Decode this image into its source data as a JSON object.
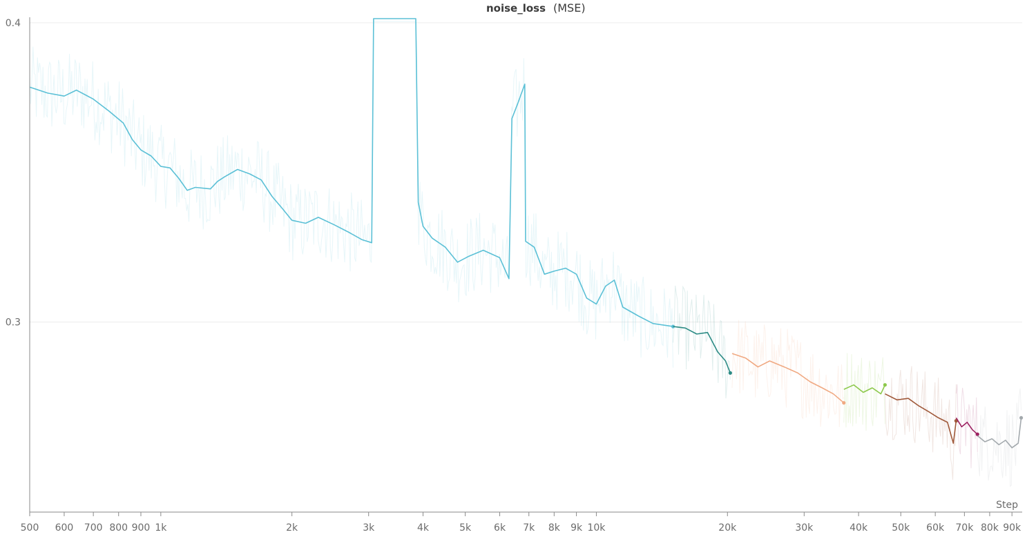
{
  "chart_data": {
    "type": "line",
    "title": "noise_loss",
    "subtitle": "(MSE)",
    "xlabel": "Step",
    "ylabel": "",
    "x_scale": "log",
    "xlim": [
      500,
      95000
    ],
    "ylim": [
      0.2365,
      0.4
    ],
    "x_ticks": [
      {
        "v": 500,
        "label": "500"
      },
      {
        "v": 600,
        "label": "600"
      },
      {
        "v": 700,
        "label": "700"
      },
      {
        "v": 800,
        "label": "800"
      },
      {
        "v": 900,
        "label": "900"
      },
      {
        "v": 1000,
        "label": "1k"
      },
      {
        "v": 2000,
        "label": "2k"
      },
      {
        "v": 3000,
        "label": "3k"
      },
      {
        "v": 4000,
        "label": "4k"
      },
      {
        "v": 5000,
        "label": "5k"
      },
      {
        "v": 6000,
        "label": "6k"
      },
      {
        "v": 7000,
        "label": "7k"
      },
      {
        "v": 8000,
        "label": "8k"
      },
      {
        "v": 9000,
        "label": "9k"
      },
      {
        "v": 10000,
        "label": "10k"
      },
      {
        "v": 20000,
        "label": "20k"
      },
      {
        "v": 30000,
        "label": "30k"
      },
      {
        "v": 40000,
        "label": "40k"
      },
      {
        "v": 50000,
        "label": "50k"
      },
      {
        "v": 60000,
        "label": "60k"
      },
      {
        "v": 70000,
        "label": "70k"
      },
      {
        "v": 80000,
        "label": "80k"
      },
      {
        "v": 90000,
        "label": "90k"
      }
    ],
    "y_ticks": [
      {
        "v": 0.3,
        "label": "0.3"
      },
      {
        "v": 0.4,
        "label": "0.4"
      }
    ],
    "grid": true,
    "series": [
      {
        "color": "#5bc0d6",
        "points": [
          [
            500,
            0.3785
          ],
          [
            550,
            0.3765
          ],
          [
            600,
            0.3755
          ],
          [
            640,
            0.3775
          ],
          [
            700,
            0.3745
          ],
          [
            760,
            0.3705
          ],
          [
            820,
            0.3665
          ],
          [
            860,
            0.361
          ],
          [
            900,
            0.3575
          ],
          [
            950,
            0.3555
          ],
          [
            1000,
            0.352
          ],
          [
            1050,
            0.3515
          ],
          [
            1100,
            0.348
          ],
          [
            1150,
            0.344
          ],
          [
            1200,
            0.345
          ],
          [
            1300,
            0.3445
          ],
          [
            1350,
            0.347
          ],
          [
            1400,
            0.3485
          ],
          [
            1500,
            0.351
          ],
          [
            1600,
            0.3495
          ],
          [
            1700,
            0.3475
          ],
          [
            1800,
            0.342
          ],
          [
            1900,
            0.338
          ],
          [
            2000,
            0.334
          ],
          [
            2150,
            0.333
          ],
          [
            2300,
            0.335
          ],
          [
            2500,
            0.3325
          ],
          [
            2700,
            0.33
          ],
          [
            2900,
            0.3275
          ],
          [
            3050,
            0.3265
          ],
          [
            3080,
            0.41
          ],
          [
            3850,
            0.41
          ],
          [
            3900,
            0.34
          ],
          [
            4000,
            0.332
          ],
          [
            4200,
            0.328
          ],
          [
            4500,
            0.325
          ],
          [
            4800,
            0.32
          ],
          [
            5100,
            0.322
          ],
          [
            5500,
            0.324
          ],
          [
            6000,
            0.3215
          ],
          [
            6300,
            0.3145
          ],
          [
            6400,
            0.368
          ],
          [
            6600,
            0.373
          ],
          [
            6850,
            0.3795
          ],
          [
            6880,
            0.327
          ],
          [
            7200,
            0.325
          ],
          [
            7600,
            0.316
          ],
          [
            8000,
            0.317
          ],
          [
            8500,
            0.318
          ],
          [
            9000,
            0.316
          ],
          [
            9500,
            0.308
          ],
          [
            10000,
            0.306
          ],
          [
            10500,
            0.312
          ],
          [
            11000,
            0.314
          ],
          [
            11500,
            0.305
          ],
          [
            12500,
            0.302
          ],
          [
            13500,
            0.2995
          ],
          [
            15000,
            0.2985
          ]
        ]
      },
      {
        "color": "#2c8b85",
        "points": [
          [
            15000,
            0.2985
          ],
          [
            16000,
            0.298
          ],
          [
            17000,
            0.296
          ],
          [
            18000,
            0.2965
          ],
          [
            19000,
            0.29
          ],
          [
            19800,
            0.287
          ],
          [
            20300,
            0.283
          ]
        ]
      },
      {
        "color": "#f0a982",
        "points": [
          [
            20500,
            0.2895
          ],
          [
            22000,
            0.288
          ],
          [
            23500,
            0.285
          ],
          [
            25000,
            0.287
          ],
          [
            27000,
            0.285
          ],
          [
            29000,
            0.283
          ],
          [
            31000,
            0.28
          ],
          [
            33000,
            0.278
          ],
          [
            35000,
            0.276
          ],
          [
            37000,
            0.273
          ]
        ]
      },
      {
        "color": "#8cc84b",
        "points": [
          [
            37000,
            0.2775
          ],
          [
            39000,
            0.279
          ],
          [
            41000,
            0.2765
          ],
          [
            43000,
            0.278
          ],
          [
            45000,
            0.276
          ],
          [
            46000,
            0.279
          ]
        ]
      },
      {
        "color": "#a0593a",
        "points": [
          [
            46000,
            0.276
          ],
          [
            49000,
            0.274
          ],
          [
            52000,
            0.2745
          ],
          [
            55000,
            0.272
          ],
          [
            58000,
            0.27
          ],
          [
            61000,
            0.268
          ],
          [
            64000,
            0.2665
          ],
          [
            66000,
            0.2595
          ],
          [
            67000,
            0.267
          ]
        ]
      },
      {
        "color": "#9c2060",
        "points": [
          [
            67000,
            0.268
          ],
          [
            69000,
            0.265
          ],
          [
            71000,
            0.2665
          ],
          [
            73000,
            0.264
          ],
          [
            75000,
            0.2625
          ]
        ]
      },
      {
        "color": "#a3a9ad",
        "points": [
          [
            75000,
            0.262
          ],
          [
            78000,
            0.26
          ],
          [
            81000,
            0.261
          ],
          [
            84000,
            0.259
          ],
          [
            87000,
            0.2605
          ],
          [
            90000,
            0.258
          ],
          [
            93000,
            0.2595
          ],
          [
            94500,
            0.268
          ]
        ]
      }
    ]
  }
}
